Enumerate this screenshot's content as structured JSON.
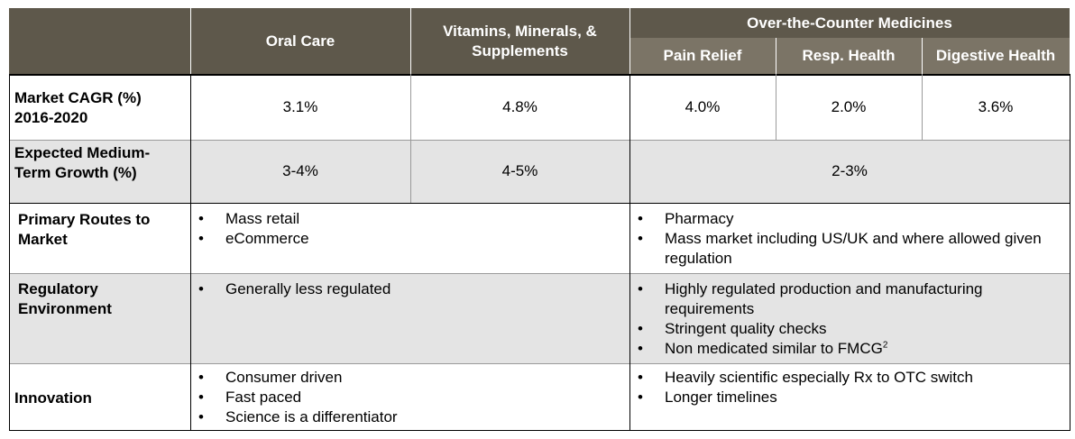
{
  "header": {
    "oral_care": "Oral Care",
    "vms": "Vitamins, Minerals, & Supplements",
    "otc_group": "Over-the-Counter Medicines",
    "pain_relief": "Pain Relief",
    "resp_health": "Resp. Health",
    "digestive_health": "Digestive Health"
  },
  "rows": {
    "cagr": {
      "label": "Market CAGR (%) 2016-2020",
      "oral_care": "3.1%",
      "vms": "4.8%",
      "pain_relief": "4.0%",
      "resp_health": "2.0%",
      "digestive_health": "3.6%"
    },
    "growth": {
      "label": "Expected Medium-Term Growth (%)",
      "oral_care": "3-4%",
      "vms": "4-5%",
      "otc": "2-3%"
    },
    "routes": {
      "label": "Primary Routes to Market",
      "consumer": [
        "Mass retail",
        "eCommerce"
      ],
      "otc": [
        "Pharmacy",
        "Mass market including US/UK and where allowed given regulation"
      ]
    },
    "regulatory": {
      "label": "Regulatory Environment",
      "consumer": [
        "Generally less regulated"
      ],
      "otc": [
        "Highly regulated production and manufacturing requirements",
        "Stringent quality checks",
        "Non medicated similar to FMCG"
      ],
      "otc_footnote": "2"
    },
    "innovation": {
      "label": "Innovation",
      "consumer": [
        "Consumer driven",
        "Fast paced",
        "Science is a differentiator"
      ],
      "otc": [
        "Heavily scientific especially Rx to OTC switch",
        "Longer timelines"
      ]
    }
  },
  "colors": {
    "header_bg": "#5e584b",
    "subheader_bg": "#7b7466",
    "row_alt": "#e4e4e4"
  }
}
